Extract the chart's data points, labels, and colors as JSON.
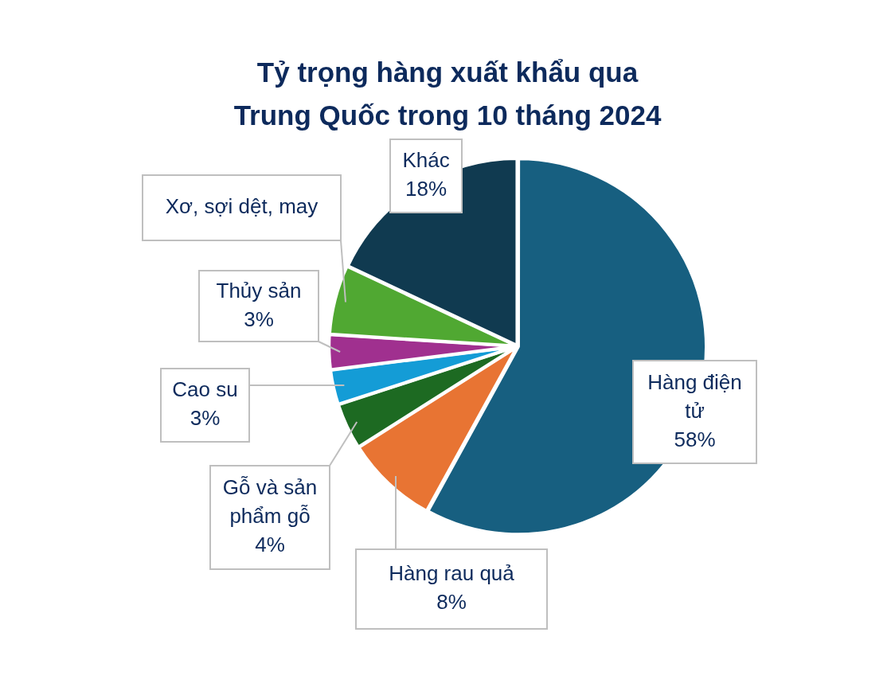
{
  "chart_data": {
    "type": "pie",
    "title": "Tỷ trọng hàng xuất khẩu qua\nTrung Quốc trong 10 tháng 2024",
    "categories": [
      "Hàng điện tử",
      "Hàng rau quả",
      "Gỗ và sản phẩm gỗ",
      "Cao su",
      "Thủy sản",
      "Xơ, sợi dệt, may",
      "Khác"
    ],
    "values": [
      58,
      8,
      4,
      3,
      3,
      6,
      18
    ],
    "colors": [
      "#175f80",
      "#e87433",
      "#1d6a22",
      "#149cd6",
      "#a0308f",
      "#50a832",
      "#103a50"
    ],
    "value_labels": [
      "58%",
      "8%",
      "4%",
      "3%",
      "3%",
      null,
      "18%"
    ]
  }
}
